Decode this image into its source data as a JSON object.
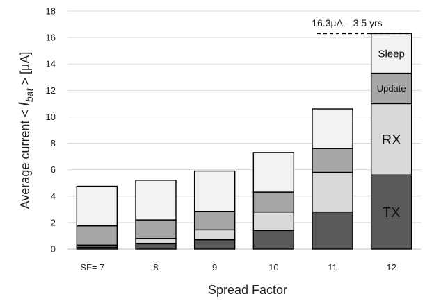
{
  "chart_data": {
    "type": "bar",
    "stacked": true,
    "categories": [
      "7",
      "8",
      "9",
      "10",
      "11",
      "12"
    ],
    "x_first_tick_prefix": "SF= ",
    "xlabel": "Spread Factor",
    "ylabel_prefix": "Average current < ",
    "ylabel_var": "I",
    "ylabel_sub": "bat",
    "ylabel_suffix": " >  [µA]",
    "ylim": [
      0,
      18
    ],
    "yticks": [
      0,
      2,
      4,
      6,
      8,
      10,
      12,
      14,
      16,
      18
    ],
    "grid": true,
    "series": [
      {
        "name": "TX",
        "color": "#595959",
        "values": [
          0.15,
          0.4,
          0.7,
          1.4,
          2.8,
          5.6
        ]
      },
      {
        "name": "RX",
        "color": "#d9d9d9",
        "values": [
          0.15,
          0.4,
          0.75,
          1.4,
          3.0,
          5.4
        ]
      },
      {
        "name": "Update",
        "color": "#a6a6a6",
        "values": [
          1.45,
          1.4,
          1.4,
          1.5,
          1.8,
          2.3
        ]
      },
      {
        "name": "Sleep",
        "color": "#f2f2f2",
        "values": [
          3.0,
          3.0,
          3.05,
          3.0,
          3.0,
          3.0
        ]
      }
    ],
    "annotation": {
      "text": "16.3µA – 3.5 yrs",
      "value": 16.3
    }
  }
}
